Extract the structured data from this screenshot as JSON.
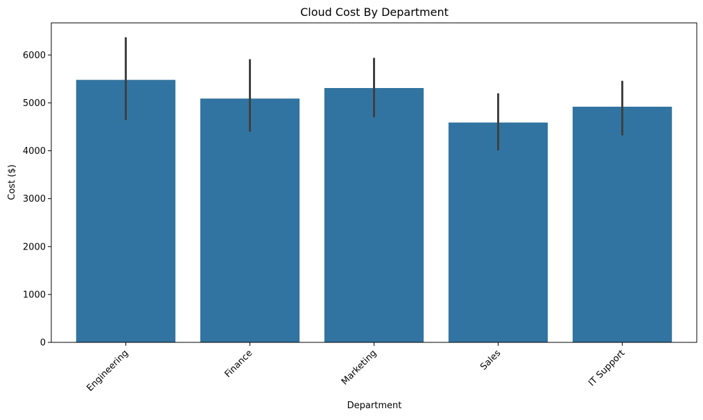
{
  "chart_data": {
    "type": "bar",
    "title": "Cloud Cost By Department",
    "xlabel": "Department",
    "ylabel": "Cost ($)",
    "categories": [
      "Engineering",
      "Finance",
      "Marketing",
      "Sales",
      "IT Support"
    ],
    "values": [
      5480,
      5090,
      5310,
      4590,
      4920
    ],
    "error_low": [
      4640,
      4400,
      4700,
      4010,
      4320
    ],
    "error_high": [
      6370,
      5910,
      5940,
      5200,
      5460
    ],
    "ylim": [
      0,
      6670
    ],
    "yticks": [
      0,
      1000,
      2000,
      3000,
      4000,
      5000,
      6000
    ],
    "grid": false,
    "legend": "none",
    "bar_color": "#3274a1",
    "error_color": "#3f3f3f"
  }
}
